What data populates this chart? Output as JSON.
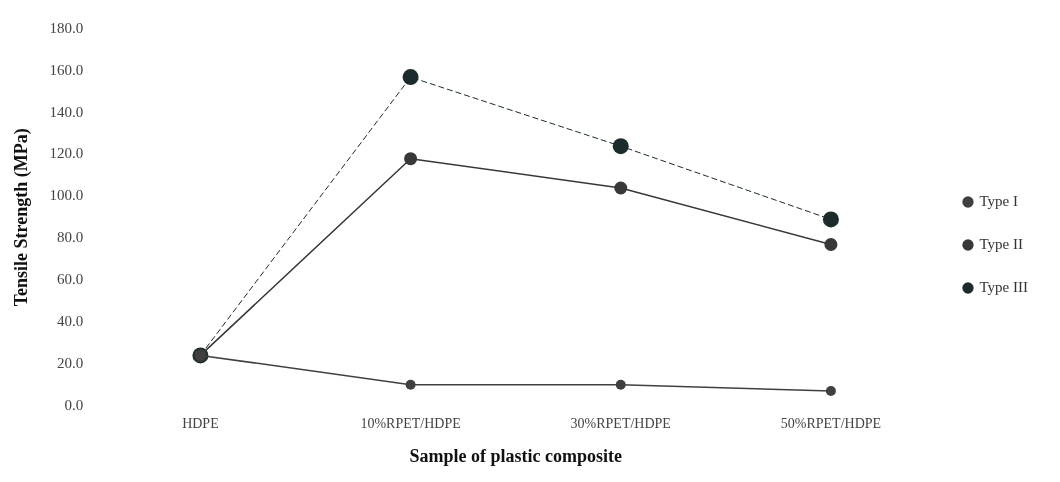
{
  "chart_data": {
    "type": "line",
    "xlabel": "Sample of plastic composite",
    "ylabel": "Tensile Strength (MPa)",
    "categories": [
      "HDPE",
      "10%RPET/HDPE",
      "30%RPET/HDPE",
      "50%RPET/HDPE"
    ],
    "series": [
      {
        "name": "Type I",
        "color": "#404040",
        "values": [
          24,
          10,
          10,
          7
        ],
        "line_style": "solid"
      },
      {
        "name": "Type II",
        "color": "#383838",
        "values": [
          24,
          118,
          104,
          77
        ],
        "line_style": "solid"
      },
      {
        "name": "Type III",
        "color": "#1c2c2c",
        "values": [
          24,
          157,
          124,
          89
        ],
        "line_style": "dashed"
      }
    ],
    "ylim": [
      0,
      180
    ],
    "yticks": [
      {
        "value": 0,
        "label": "0.0"
      },
      {
        "value": 20,
        "label": "20.0"
      },
      {
        "value": 40,
        "label": "40.0"
      },
      {
        "value": 60,
        "label": "60.0"
      },
      {
        "value": 80,
        "label": "80.0"
      },
      {
        "value": 100,
        "label": "100.0"
      },
      {
        "value": 120,
        "label": "120.0"
      },
      {
        "value": 140,
        "label": "140.0"
      },
      {
        "value": 160,
        "label": "160.0"
      },
      {
        "value": 180,
        "label": "180.0"
      }
    ],
    "grid": false,
    "legend": "right",
    "marker": "circle"
  }
}
